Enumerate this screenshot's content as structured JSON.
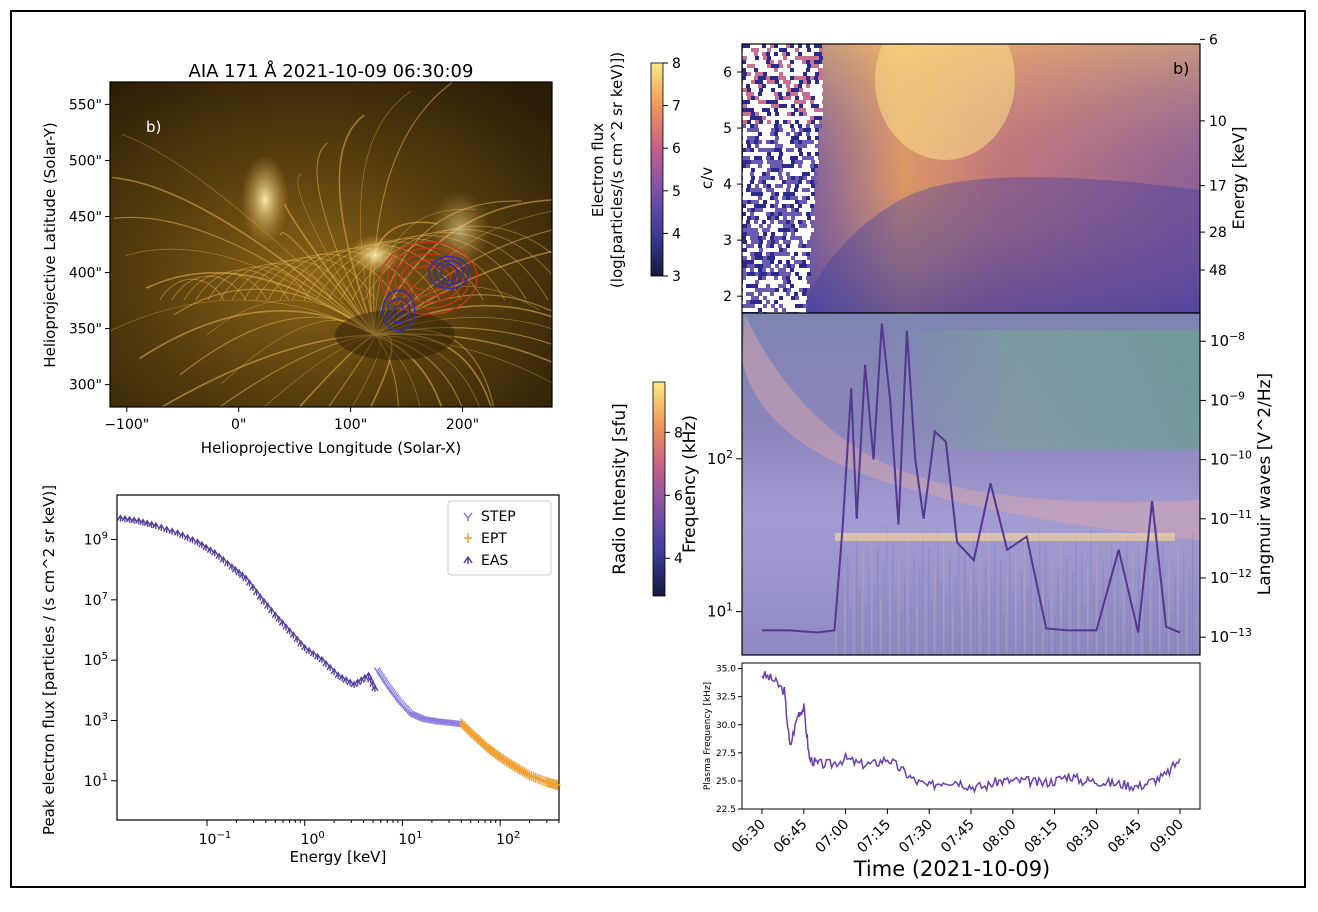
{
  "colors": {
    "aia_dark": "#1a1306",
    "aia_gold": "#c8942c",
    "aia_bright": "#fff0b8",
    "step": "#8c7ee0",
    "ept": "#f0a030",
    "eas": "#5a3f9e",
    "contour_blue": "#3030b0",
    "contour_red": "#d03020",
    "lw_line": "#54388f",
    "plasma_line": "#6a3fb0"
  },
  "aia": {
    "title": "AIA 171 Å 2021-10-09 06:30:09",
    "panel_label": "b)",
    "xlabel": "Helioprojective Longitude (Solar-X)",
    "ylabel": "Helioprojective Latitude (Solar-Y)",
    "xticks": [
      "-100\"",
      "0\"",
      "100\"",
      "200\""
    ],
    "yticks": [
      "300\"",
      "350\"",
      "400\"",
      "450\"",
      "500\"",
      "550\""
    ],
    "xlim": [
      -115,
      280
    ],
    "ylim": [
      280,
      570
    ]
  },
  "colorbar_flux": {
    "label_line1": "Electron flux",
    "label_line2": "(log[particles/(s cm^2 sr keV)])",
    "ticks": [
      "3",
      "4",
      "5",
      "6",
      "7",
      "8"
    ],
    "range": [
      3,
      8
    ]
  },
  "colorbar_radio": {
    "label": "Radio Intensity [sfu]",
    "ticks": [
      "4",
      "6",
      "8"
    ],
    "range": [
      2.8,
      9.6
    ]
  },
  "spectrogram": {
    "panel_label": "b)",
    "ylabel_left": "c/v",
    "ylabel_right": "Energy [keV]",
    "yticks_left": [
      "2",
      "3",
      "4",
      "5",
      "6"
    ],
    "yticks_right": [
      "6",
      "10",
      "17",
      "28",
      "48"
    ],
    "ylim": [
      1.7,
      6.5
    ]
  },
  "radio": {
    "ylabel_left": "Frequency (kHz)",
    "ylabel_right": "Langmuir waves [V^2/Hz]",
    "yticks_left": [
      "10^1",
      "10^2"
    ],
    "yticks_right": [
      "10^-13",
      "10^-12",
      "10^-11",
      "10^-10",
      "10^-9",
      "10^-8"
    ]
  },
  "plasma": {
    "ylabel": "Plasma Frequency [kHz]",
    "yticks": [
      "22.5",
      "25.0",
      "27.5",
      "30.0",
      "32.5",
      "35.0"
    ],
    "ylim": [
      22.5,
      35.5
    ]
  },
  "time_axis": {
    "xlabel": "Time (2021-10-09)",
    "ticks": [
      "06:30",
      "06:45",
      "07:00",
      "07:15",
      "07:30",
      "07:45",
      "08:00",
      "08:15",
      "08:30",
      "08:45",
      "09:00"
    ]
  },
  "chart_data": [
    {
      "type": "scatter",
      "title": "",
      "xlabel": "Energy [keV]",
      "ylabel": "Peak electron flux [particles / (s cm^2 sr keV)]",
      "xscale": "log",
      "yscale": "log",
      "xlim": [
        0.012,
        400
      ],
      "ylim": [
        0.5,
        30000000000.0
      ],
      "xticks": [
        "10^-1",
        "10^0",
        "10^1",
        "10^2"
      ],
      "yticks": [
        "10^1",
        "10^3",
        "10^5",
        "10^7",
        "10^9"
      ],
      "legend": [
        "STEP",
        "EPT",
        "EAS"
      ],
      "legend_position": "top-right",
      "series": [
        {
          "name": "EAS",
          "x": [
            0.013,
            0.02,
            0.03,
            0.05,
            0.08,
            0.12,
            0.18,
            0.25,
            0.35,
            0.5,
            0.7,
            1.0,
            1.5,
            2.2,
            3.2,
            4.5,
            5.5
          ],
          "y": [
            5000000000.0,
            4000000000.0,
            2800000000.0,
            1600000000.0,
            800000000.0,
            350000000.0,
            120000000.0,
            50000000.0,
            12000000.0,
            3000000.0,
            900000.0,
            250000.0,
            100000.0,
            30000.0,
            15000.0,
            30000.0,
            8000.0
          ]
        },
        {
          "name": "STEP",
          "x": [
            5.5,
            7,
            9,
            12,
            16,
            22,
            30,
            40
          ],
          "y": [
            50000.0,
            15000.0,
            5000.0,
            1800.0,
            1200.0,
            1000.0,
            900.0,
            800.0
          ]
        },
        {
          "name": "EPT",
          "x": [
            40,
            55,
            75,
            100,
            140,
            200,
            300,
            400
          ],
          "y": [
            800.0,
            300.0,
            120.0,
            60,
            30,
            15,
            9,
            7
          ]
        }
      ]
    },
    {
      "type": "line",
      "title": "",
      "xlabel": "Time (2021-10-09)",
      "ylabel": "Langmuir waves [V^2/Hz]",
      "yscale": "log",
      "ylim": [
        5e-14,
        3e-08
      ],
      "series": [
        {
          "name": "",
          "x": [
            "06:30",
            "06:40",
            "06:50",
            "06:56",
            "06:59",
            "07:02",
            "07:04",
            "07:07",
            "07:10",
            "07:13",
            "07:16",
            "07:19",
            "07:22",
            "07:25",
            "07:28",
            "07:32",
            "07:36",
            "07:40",
            "07:46",
            "07:52",
            "07:58",
            "08:05",
            "08:12",
            "08:20",
            "08:30",
            "08:38",
            "08:45",
            "08:50",
            "08:55",
            "09:00"
          ],
          "y": [
            1.3e-13,
            1.3e-13,
            1.2e-13,
            1.3e-13,
            8e-12,
            1.6e-09,
            1e-11,
            4e-09,
            1e-10,
            2e-08,
            1e-09,
            8e-12,
            1.5e-08,
            1e-10,
            1e-11,
            3e-10,
            2e-10,
            4e-12,
            2e-12,
            4e-11,
            3e-12,
            5e-12,
            1.4e-13,
            1.3e-13,
            1.3e-13,
            3e-12,
            1.2e-13,
            2e-11,
            1.5e-13,
            1.2e-13
          ]
        }
      ]
    },
    {
      "type": "line",
      "title": "",
      "xlabel": "Time (2021-10-09)",
      "ylabel": "Plasma Frequency [kHz]",
      "ylim": [
        22.5,
        35.5
      ],
      "series": [
        {
          "name": "",
          "x": [
            "06:30",
            "06:34",
            "06:38",
            "06:40",
            "06:43",
            "06:45",
            "06:47",
            "06:50",
            "06:55",
            "07:00",
            "07:05",
            "07:10",
            "07:15",
            "07:20",
            "07:25",
            "07:30",
            "07:35",
            "07:40",
            "07:45",
            "07:50",
            "07:55",
            "08:00",
            "08:05",
            "08:10",
            "08:15",
            "08:20",
            "08:25",
            "08:30",
            "08:35",
            "08:40",
            "08:45",
            "08:50",
            "08:55",
            "09:00"
          ],
          "y": [
            34.5,
            34,
            33,
            28,
            31,
            31.5,
            27,
            26.5,
            26.5,
            27,
            26.5,
            26.5,
            27,
            26,
            25,
            24.5,
            25,
            25,
            24.5,
            24.5,
            25,
            25,
            25,
            24.8,
            25,
            25.5,
            25,
            25,
            24.8,
            24.7,
            24.5,
            25,
            25.5,
            27
          ]
        }
      ]
    }
  ]
}
